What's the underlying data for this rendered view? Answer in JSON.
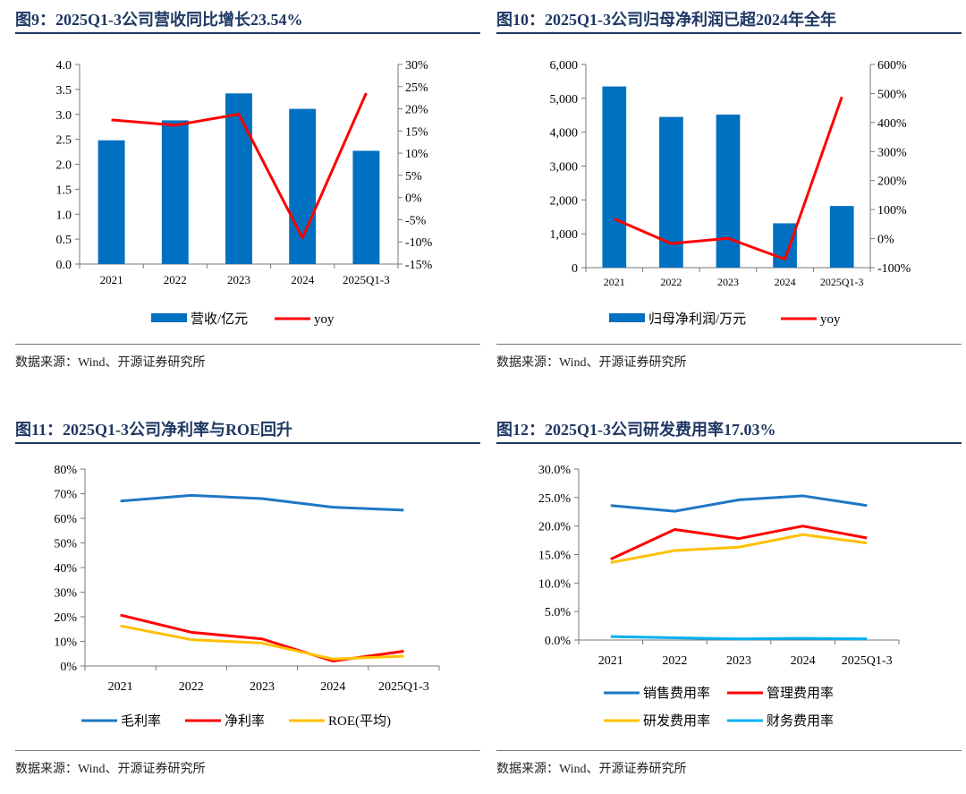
{
  "charts": [
    {
      "title": "图9：2025Q1-3公司营收同比增长23.54%",
      "source": "数据来源：Wind、开源证券研究所",
      "chart_data": {
        "type": "bar",
        "categories": [
          "2021",
          "2022",
          "2023",
          "2024",
          "2025Q1-3"
        ],
        "ylim": [
          0,
          4
        ],
        "y_ticks": [
          "0.0",
          "0.5",
          "1.0",
          "1.5",
          "2.0",
          "2.5",
          "3.0",
          "3.5",
          "4.0"
        ],
        "y2lim": [
          -15,
          30
        ],
        "y2_ticks": [
          "-15%",
          "-10%",
          "-5%",
          "0%",
          "5%",
          "10%",
          "15%",
          "20%",
          "25%",
          "30%"
        ],
        "series": [
          {
            "name": "营收/亿元",
            "type": "bar",
            "axis": "left",
            "color": "#0070C0",
            "values": [
              2.48,
              2.88,
              3.42,
              3.11,
              2.27
            ]
          },
          {
            "name": "yoy",
            "type": "line",
            "axis": "right",
            "color": "#FF0000",
            "values": [
              17.5,
              16.3,
              18.8,
              -9.1,
              23.54
            ]
          }
        ]
      }
    },
    {
      "title": "图10：2025Q1-3公司归母净利润已超2024年全年",
      "source": "数据来源：Wind、开源证券研究所",
      "chart_data": {
        "type": "bar",
        "categories": [
          "2021",
          "2022",
          "2023",
          "2024",
          "2025Q1-3"
        ],
        "ylim": [
          0,
          6000
        ],
        "y_ticks": [
          "0",
          "1,000",
          "2,000",
          "3,000",
          "4,000",
          "5,000",
          "6,000"
        ],
        "y2lim": [
          -100,
          600
        ],
        "y2_ticks": [
          "-100%",
          "0%",
          "100%",
          "200%",
          "300%",
          "400%",
          "500%",
          "600%"
        ],
        "series": [
          {
            "name": "归母净利润/万元",
            "type": "bar",
            "axis": "left",
            "color": "#0070C0",
            "values": [
              5350,
              4450,
              4520,
              1310,
              1820
            ]
          },
          {
            "name": "yoy",
            "type": "line",
            "axis": "right",
            "color": "#FF0000",
            "values": [
              68,
              -17,
              1,
              -71,
              488
            ]
          }
        ]
      }
    },
    {
      "title": "图11：2025Q1-3公司净利率与ROE回升",
      "source": "数据来源：Wind、开源证券研究所",
      "chart_data": {
        "type": "line",
        "categories": [
          "2021",
          "2022",
          "2023",
          "2024",
          "2025Q1-3"
        ],
        "ylim": [
          0,
          80
        ],
        "y_ticks": [
          "0%",
          "10%",
          "20%",
          "30%",
          "40%",
          "50%",
          "60%",
          "70%",
          "80%"
        ],
        "series": [
          {
            "name": "毛利率",
            "color": "#1F77C4",
            "values": [
              67.0,
              69.3,
              68.0,
              64.5,
              63.3
            ]
          },
          {
            "name": "净利率",
            "color": "#FF0000",
            "values": [
              20.7,
              13.7,
              11.0,
              2.0,
              6.0
            ]
          },
          {
            "name": "ROE(平均)",
            "color": "#FFC000",
            "values": [
              16.3,
              10.7,
              9.3,
              2.8,
              4.0
            ]
          }
        ]
      }
    },
    {
      "title": "图12：2025Q1-3公司研发费用率17.03%",
      "source": "数据来源：Wind、开源证券研究所",
      "chart_data": {
        "type": "line",
        "categories": [
          "2021",
          "2022",
          "2023",
          "2024",
          "2025Q1-3"
        ],
        "ylim": [
          0,
          30
        ],
        "y_ticks": [
          "0.0%",
          "5.0%",
          "10.0%",
          "15.0%",
          "20.0%",
          "25.0%",
          "30.0%"
        ],
        "series": [
          {
            "name": "销售费用率",
            "color": "#1F77C4",
            "values": [
              23.6,
              22.6,
              24.6,
              25.3,
              23.6
            ]
          },
          {
            "name": "管理费用率",
            "color": "#FF0000",
            "values": [
              14.2,
              19.4,
              17.8,
              20.0,
              17.9
            ]
          },
          {
            "name": "研发费用率",
            "color": "#FFC000",
            "values": [
              13.6,
              15.7,
              16.3,
              18.5,
              17.03
            ]
          },
          {
            "name": "财务费用率",
            "color": "#00B0F0",
            "values": [
              0.6,
              0.4,
              0.2,
              0.3,
              0.2
            ]
          }
        ]
      }
    }
  ]
}
